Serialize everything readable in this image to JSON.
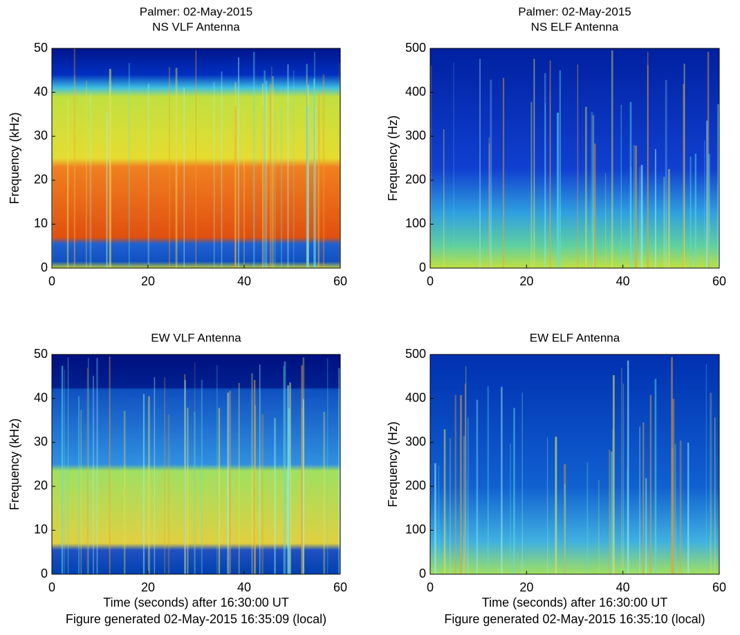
{
  "chart_data": [
    {
      "type": "spectrogram",
      "title": "Palmer: 02-May-2015",
      "subtitle": "NS VLF Antenna",
      "ylabel": "Frequency (kHz)",
      "xlim": [
        0,
        60
      ],
      "xticks": [
        0,
        20,
        40,
        60
      ],
      "ylim": [
        0,
        50
      ],
      "yticks": [
        0,
        10,
        20,
        30,
        40,
        50
      ]
    },
    {
      "type": "spectrogram",
      "title": "Palmer: 02-May-2015",
      "subtitle": "NS ELF Antenna",
      "ylabel": "Frequency (Hz)",
      "xlim": [
        0,
        60
      ],
      "xticks": [
        0,
        20,
        40,
        60
      ],
      "ylim": [
        0,
        500
      ],
      "yticks": [
        0,
        100,
        200,
        300,
        400,
        500
      ]
    },
    {
      "type": "spectrogram",
      "title": "EW VLF Antenna",
      "ylabel": "Frequency (kHz)",
      "xlabel": "Time (seconds) after 16:30:00 UT",
      "caption": "Figure generated 02-May-2015 16:35:09 (local)",
      "xlim": [
        0,
        60
      ],
      "xticks": [
        0,
        20,
        40,
        60
      ],
      "ylim": [
        0,
        50
      ],
      "yticks": [
        0,
        10,
        20,
        30,
        40,
        50
      ]
    },
    {
      "type": "spectrogram",
      "title": "EW ELF Antenna",
      "ylabel": "Frequency (Hz)",
      "xlabel": "Time (seconds) after 16:30:00 UT",
      "caption": "Figure generated 02-May-2015 16:35:10 (local)",
      "xlim": [
        0,
        60
      ],
      "xticks": [
        0,
        20,
        40,
        60
      ],
      "ylim": [
        0,
        500
      ],
      "yticks": [
        0,
        100,
        200,
        300,
        400,
        500
      ]
    }
  ]
}
